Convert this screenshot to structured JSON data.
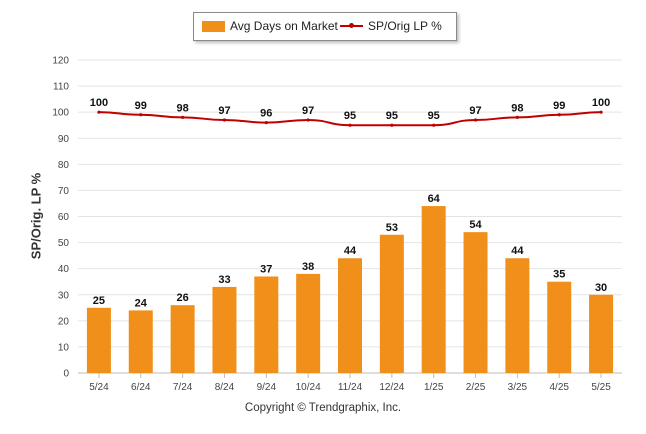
{
  "chart_data": {
    "type": "bar",
    "categories": [
      "5/24",
      "6/24",
      "7/24",
      "8/24",
      "9/24",
      "10/24",
      "11/24",
      "12/24",
      "1/25",
      "2/25",
      "3/25",
      "4/25",
      "5/25"
    ],
    "series": [
      {
        "name": "Avg Days on Market",
        "type": "bar",
        "color": "#f0901a",
        "values": [
          25,
          24,
          26,
          33,
          37,
          38,
          44,
          53,
          64,
          54,
          44,
          35,
          30
        ]
      },
      {
        "name": "SP/Orig LP %",
        "type": "line",
        "color": "#c00000",
        "values": [
          100,
          99,
          98,
          97,
          96,
          97,
          95,
          95,
          95,
          97,
          98,
          99,
          100
        ]
      }
    ],
    "ylabel": "SP/Orig. LP %",
    "ylim": [
      0,
      120
    ],
    "yticks": [
      0,
      10,
      20,
      30,
      40,
      50,
      60,
      70,
      80,
      90,
      100,
      110,
      120
    ],
    "grid": true,
    "legend_position": "top-center"
  },
  "legend": {
    "bar_label": "Avg Days on Market",
    "line_label": "SP/Orig LP %"
  },
  "footer": {
    "copyright": "Copyright © Trendgraphix, Inc."
  }
}
